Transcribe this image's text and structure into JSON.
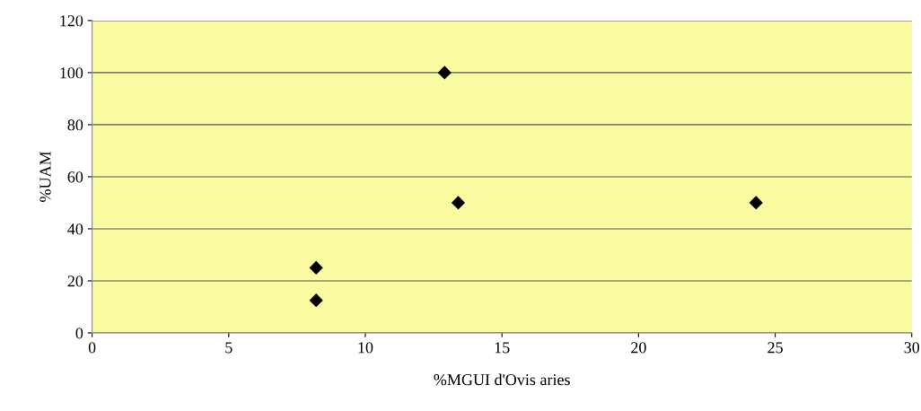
{
  "chart_data": {
    "type": "scatter",
    "xlabel": "%MGUI d'Ovis aries",
    "ylabel": "%UAM",
    "x": [
      8.2,
      8.2,
      12.9,
      13.4,
      24.3
    ],
    "values": [
      25,
      12.5,
      100,
      50,
      50
    ],
    "color": "#000000",
    "marker": "diamond",
    "xlim": [
      0,
      30
    ],
    "xticks": [
      0,
      5,
      10,
      15,
      20,
      25,
      30
    ],
    "ylim": [
      0,
      120
    ],
    "yticks": [
      0,
      20,
      40,
      60,
      80,
      100,
      120
    ],
    "grid": "y"
  }
}
